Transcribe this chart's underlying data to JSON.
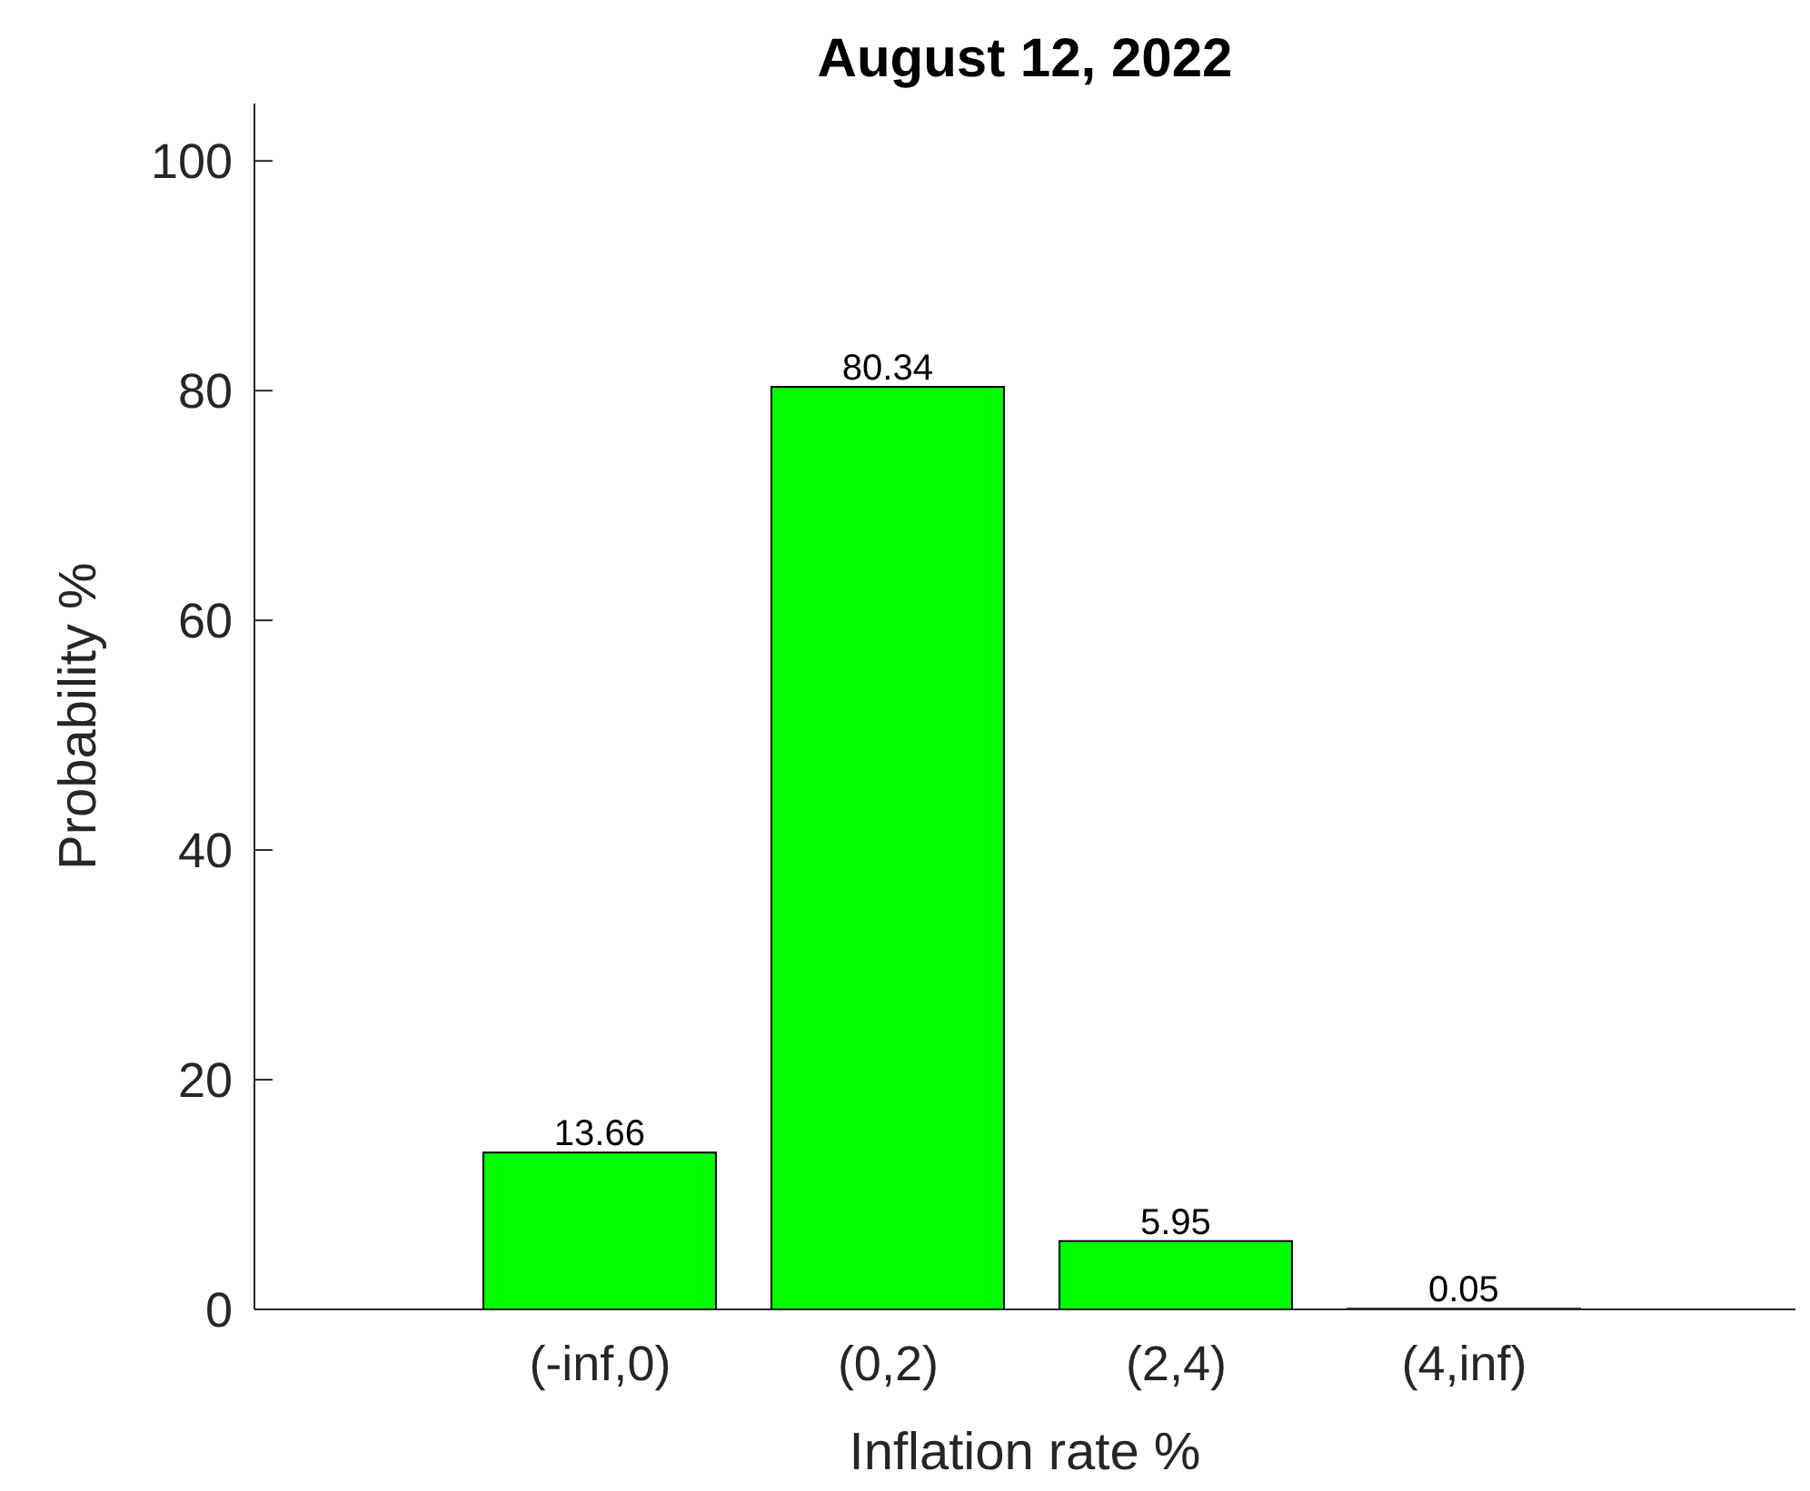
{
  "chart_data": {
    "type": "bar",
    "title": "August 12, 2022",
    "xlabel": "Inflation rate %",
    "ylabel": "Probability %",
    "categories": [
      "(-inf,0)",
      "(0,2)",
      "(2,4)",
      "(4,inf)"
    ],
    "values": [
      13.66,
      80.34,
      5.95,
      0.05
    ],
    "color": "#00ff00",
    "ylim": [
      0,
      105
    ],
    "yticks": [
      0,
      20,
      40,
      60,
      80,
      100
    ],
    "data_labels": true,
    "grid": false,
    "legend": false
  }
}
